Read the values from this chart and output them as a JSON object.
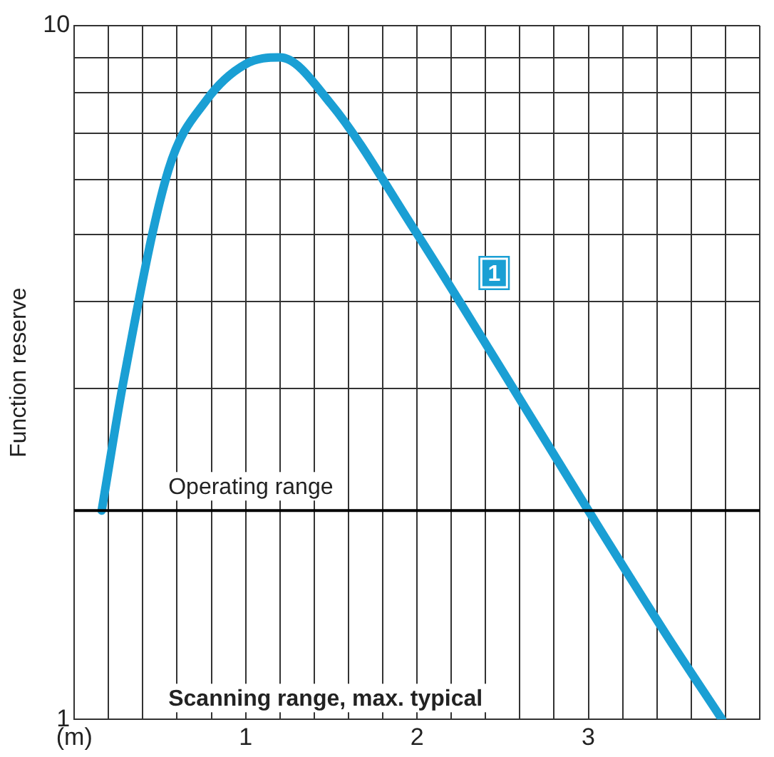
{
  "chart_data": {
    "type": "line",
    "ylabel": "Function reserve",
    "log": "y",
    "grid": true,
    "marker": "none",
    "line_style": "solid",
    "series": [
      {
        "color": "#1a9fd4",
        "x": [
          0.16,
          0.29,
          0.55,
          0.77,
          1.0,
          1.2,
          1.5,
          1.98,
          2.41,
          3.0,
          3.45,
          3.78
        ],
        "values": [
          2.0,
          3.1,
          6.2,
          7.8,
          8.8,
          9.0,
          7.7,
          5.1,
          3.45,
          2.0,
          1.33,
          1.0
        ]
      }
    ],
    "xlim": [
      0,
      4
    ],
    "xticks": [
      {
        "value": 0,
        "label": "(m)"
      },
      {
        "value": 0.2,
        "label": null
      },
      {
        "value": 0.4,
        "label": null
      },
      {
        "value": 0.6,
        "label": null
      },
      {
        "value": 0.8,
        "label": null
      },
      1,
      {
        "value": 1.2,
        "label": null
      },
      {
        "value": 1.4,
        "label": null
      },
      {
        "value": 1.6,
        "label": null
      },
      {
        "value": 1.8,
        "label": null
      },
      2,
      {
        "value": 2.2,
        "label": null
      },
      {
        "value": 2.4,
        "label": null
      },
      {
        "value": 2.6,
        "label": null
      },
      {
        "value": 2.8,
        "label": null
      },
      3,
      {
        "value": 3.2,
        "label": null
      },
      {
        "value": 3.4,
        "label": null
      },
      {
        "value": 3.6,
        "label": null
      },
      {
        "value": 3.8,
        "label": null
      },
      {
        "value": 4,
        "label": null
      }
    ],
    "ylim": [
      1,
      10
    ],
    "yticks": [
      1,
      {
        "value": 2,
        "label": null
      },
      {
        "value": 3,
        "label": null
      },
      {
        "value": 4,
        "label": null
      },
      {
        "value": 5,
        "label": null
      },
      {
        "value": 6,
        "label": null
      },
      {
        "value": 7,
        "label": null
      },
      {
        "value": 8,
        "label": null
      },
      {
        "value": 9,
        "label": null
      },
      10
    ],
    "ref_lines": [
      {
        "axis": "y",
        "value": 2,
        "label": "Operating range",
        "color": "#000000"
      }
    ],
    "annotations": [
      {
        "text": "1",
        "x": 2.45,
        "y": 4.4
      },
      "Scanning range, max. typical"
    ],
    "legend": false
  }
}
